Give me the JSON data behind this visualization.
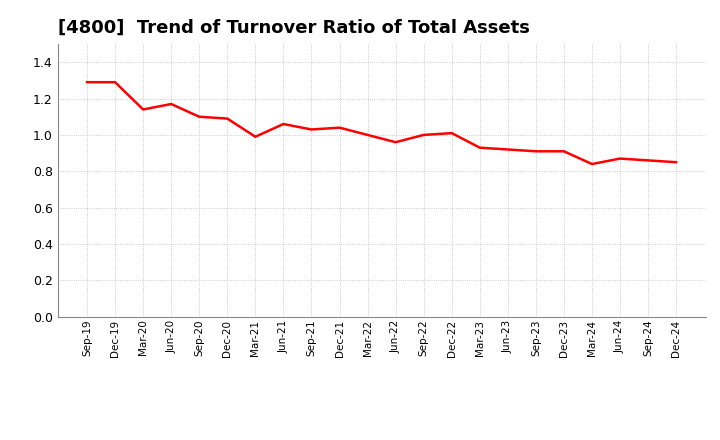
{
  "title": "[4800]  Trend of Turnover Ratio of Total Assets",
  "title_fontsize": 13,
  "line_color": "#FF0000",
  "line_width": 1.8,
  "background_color": "#FFFFFF",
  "grid_color": "#AAAAAA",
  "ylim": [
    0.0,
    1.5
  ],
  "yticks": [
    0.0,
    0.2,
    0.4,
    0.6,
    0.8,
    1.0,
    1.2,
    1.4
  ],
  "x_labels": [
    "Sep-19",
    "Dec-19",
    "Mar-20",
    "Jun-20",
    "Sep-20",
    "Dec-20",
    "Mar-21",
    "Jun-21",
    "Sep-21",
    "Dec-21",
    "Mar-22",
    "Jun-22",
    "Sep-22",
    "Dec-22",
    "Mar-23",
    "Jun-23",
    "Sep-23",
    "Dec-23",
    "Mar-24",
    "Jun-24",
    "Sep-24",
    "Dec-24"
  ],
  "values": [
    1.29,
    1.29,
    1.14,
    1.17,
    1.1,
    1.09,
    0.99,
    1.06,
    1.03,
    1.04,
    1.0,
    0.96,
    1.0,
    1.01,
    0.93,
    0.92,
    0.91,
    0.91,
    0.84,
    0.87,
    0.86,
    0.85
  ]
}
